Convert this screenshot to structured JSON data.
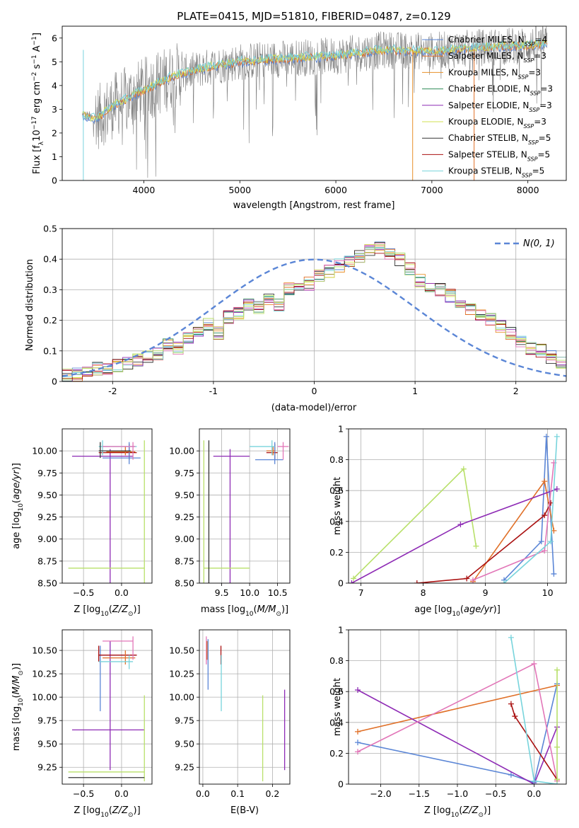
{
  "figure_title": "PLATE=0415, MJD=51810, FIBERID=0487, z=0.129",
  "colors": {
    "Chabrier MILES": "#5b86d6",
    "Salpeter MILES": "#e07028",
    "Kroupa MILES": "#e8902a",
    "Chabrier ELODIE": "#2e8b57",
    "Salpeter ELODIE": "#8e2bb5",
    "Kroupa ELODIE": "#d2e050",
    "Chabrier STELIB": "#333333",
    "Salpeter STELIB": "#aa1111",
    "Kroupa STELIB": "#78d4dc",
    "data": "#808080",
    "pink": "#e276b8",
    "green_yellow": "#b8e06a"
  },
  "chart_data": [
    {
      "id": "spectrum",
      "type": "line",
      "title": "PLATE=0415, MJD=51810, FIBERID=0487, z=0.129",
      "xlabel": "wavelength [Angstrom, rest frame]",
      "ylabel": "Flux [f_λ 10^-17 erg cm^-2 s^-1 A^-1]",
      "xlim": [
        3150,
        8400
      ],
      "ylim": [
        0,
        6.5
      ],
      "xticks": [
        4000,
        5000,
        6000,
        7000,
        8000
      ],
      "yticks": [
        0,
        1,
        2,
        3,
        4,
        5,
        6
      ],
      "grid": false,
      "legend_loc": "right",
      "legend": [
        {
          "label": "Chabrier MILES, N",
          "sub": "SSP",
          "tail": "=4"
        },
        {
          "label": "Salpeter MILES, N",
          "sub": "SSP",
          "tail": "=3"
        },
        {
          "label": "Kroupa MILES, N",
          "sub": "SSP",
          "tail": "=3"
        },
        {
          "label": "Chabrier ELODIE, N",
          "sub": "SSP",
          "tail": "=3"
        },
        {
          "label": "Salpeter ELODIE, N",
          "sub": "SSP",
          "tail": "=3"
        },
        {
          "label": "Kroupa ELODIE, N",
          "sub": "SSP",
          "tail": "=3"
        },
        {
          "label": "Chabrier STELIB, N",
          "sub": "SSP",
          "tail": "=5"
        },
        {
          "label": "Salpeter STELIB, N",
          "sub": "SSP",
          "tail": "=5"
        },
        {
          "label": "Kroupa STELIB, N",
          "sub": "SSP",
          "tail": "=5"
        }
      ],
      "data_trend": {
        "x": [
          3360,
          3500,
          3700,
          4000,
          4300,
          4700,
          5000,
          5500,
          6000,
          6500,
          7000,
          7500,
          8000,
          8200
        ],
        "y": [
          2.75,
          2.6,
          3.2,
          3.8,
          4.4,
          4.8,
          5.0,
          5.15,
          5.25,
          5.5,
          5.45,
          5.6,
          5.7,
          5.75
        ]
      }
    },
    {
      "id": "residuals",
      "type": "step",
      "xlabel": "(data-model)/error",
      "ylabel": "Normed distribution",
      "xlim": [
        -2.5,
        2.5
      ],
      "ylim": [
        0,
        0.5
      ],
      "xticks": [
        -2,
        -1,
        0,
        1,
        2
      ],
      "yticks": [
        0.0,
        0.1,
        0.2,
        0.3,
        0.4,
        0.5
      ],
      "grid": true,
      "reference_label": "N(0, 1)",
      "bin_width": 0.1,
      "bin_start": -2.5,
      "base_values": [
        0.02,
        0.022,
        0.03,
        0.04,
        0.045,
        0.05,
        0.06,
        0.07,
        0.08,
        0.09,
        0.12,
        0.11,
        0.14,
        0.17,
        0.19,
        0.16,
        0.21,
        0.22,
        0.25,
        0.24,
        0.27,
        0.25,
        0.3,
        0.31,
        0.32,
        0.35,
        0.36,
        0.38,
        0.39,
        0.41,
        0.43,
        0.44,
        0.42,
        0.4,
        0.37,
        0.33,
        0.3,
        0.3,
        0.28,
        0.25,
        0.24,
        0.22,
        0.2,
        0.18,
        0.16,
        0.13,
        0.11,
        0.1,
        0.08,
        0.06
      ]
    },
    {
      "id": "age_vs_Z",
      "type": "errorbar",
      "xlabel": "Z [log10(Z/Z⊙)]",
      "ylabel": "age [log10(age/yr)]",
      "xlim": [
        -0.78,
        0.4
      ],
      "ylim": [
        8.5,
        10.25
      ],
      "xticks": [
        -0.5,
        0.0
      ],
      "xticklabels": [
        "−0.5",
        "0.0"
      ],
      "yticks": [
        8.5,
        8.75,
        9.0,
        9.25,
        9.5,
        9.75,
        10.0
      ],
      "yticklabels": [
        "8.50",
        "8.75",
        "9.00",
        "9.25",
        "9.50",
        "9.75",
        "10.00"
      ],
      "grid": true
    },
    {
      "id": "age_vs_mass",
      "type": "errorbar",
      "xlabel": "mass [log10(M/M⊙)]",
      "ylabel": "",
      "xlim": [
        9.1,
        10.72
      ],
      "ylim": [
        8.5,
        10.25
      ],
      "xticks": [
        9.5,
        10.0,
        10.5
      ],
      "xticklabels": [
        "9.5",
        "10.0",
        "10.5"
      ],
      "yticks": [
        8.5,
        8.75,
        9.0,
        9.25,
        9.5,
        9.75,
        10.0
      ],
      "yticklabels": [
        "8.50",
        "8.75",
        "9.00",
        "9.25",
        "9.50",
        "9.75",
        "10.00"
      ],
      "grid": true
    },
    {
      "id": "weight_vs_age",
      "type": "line",
      "xlabel": "age [log10(age/yr)]",
      "ylabel": "mass weight",
      "xlim": [
        6.8,
        10.3
      ],
      "ylim": [
        0,
        1
      ],
      "xticks": [
        7,
        8,
        9,
        10
      ],
      "yticks": [
        0.0,
        0.2,
        0.4,
        0.6,
        0.8,
        1.0
      ],
      "grid": true,
      "series": [
        {
          "color": "#5b86d6",
          "x": [
            9.3,
            9.9,
            9.98,
            10.1
          ],
          "y": [
            0.02,
            0.27,
            0.95,
            0.06
          ]
        },
        {
          "color": "#e07028",
          "x": [
            8.8,
            9.95,
            10.1
          ],
          "y": [
            0.01,
            0.66,
            0.34
          ]
        },
        {
          "color": "#b8e06a",
          "x": [
            6.88,
            8.65,
            8.85
          ],
          "y": [
            0.03,
            0.74,
            0.24
          ]
        },
        {
          "color": "#8e2bb5",
          "x": [
            6.85,
            8.6,
            10.15
          ],
          "y": [
            0.0,
            0.38,
            0.61
          ]
        },
        {
          "color": "#aa1111",
          "x": [
            7.9,
            8.7,
            9.95,
            10.05
          ],
          "y": [
            0.0,
            0.03,
            0.44,
            0.52
          ]
        },
        {
          "color": "#e276b8",
          "x": [
            8.8,
            9.95,
            10.1
          ],
          "y": [
            0.02,
            0.21,
            0.78
          ]
        },
        {
          "color": "#78d4dc",
          "x": [
            9.3,
            10.05,
            10.15
          ],
          "y": [
            0.0,
            0.27,
            0.95
          ]
        }
      ]
    },
    {
      "id": "mass_vs_Z",
      "type": "errorbar",
      "xlabel": "Z [log10(Z/Z⊙)]",
      "ylabel": "mass [log10(M/M⊙)]",
      "xlim": [
        -0.78,
        0.4
      ],
      "ylim": [
        9.07,
        10.72
      ],
      "xticks": [
        -0.5,
        0.0
      ],
      "xticklabels": [
        "−0.5",
        "0.0"
      ],
      "yticks": [
        9.25,
        9.5,
        9.75,
        10.0,
        10.25,
        10.5
      ],
      "yticklabels": [
        "9.25",
        "9.50",
        "9.75",
        "10.00",
        "10.25",
        "10.50"
      ],
      "grid": true
    },
    {
      "id": "mass_vs_EBV",
      "type": "errorbar",
      "xlabel": "E(B-V)",
      "ylabel": "",
      "xlim": [
        -0.01,
        0.25
      ],
      "ylim": [
        9.07,
        10.72
      ],
      "xticks": [
        0.0,
        0.1,
        0.2
      ],
      "xticklabels": [
        "0.0",
        "0.1",
        "0.2"
      ],
      "yticks": [
        9.25,
        9.5,
        9.75,
        10.0,
        10.25,
        10.5
      ],
      "yticklabels": [
        "9.25",
        "9.50",
        "9.75",
        "10.00",
        "10.25",
        "10.50"
      ],
      "grid": true
    },
    {
      "id": "weight_vs_Z",
      "type": "line",
      "xlabel": "Z [log10(Z/Z⊙)]",
      "ylabel": "mass weight",
      "xlim": [
        -2.42,
        0.42
      ],
      "ylim": [
        0,
        1
      ],
      "xticks": [
        -2.0,
        -1.5,
        -1.0,
        -0.5,
        0.0
      ],
      "xticklabels": [
        "−2.0",
        "−1.5",
        "−1.0",
        "−0.5",
        "0.0"
      ],
      "yticks": [
        0.0,
        0.2,
        0.4,
        0.6,
        0.8,
        1.0
      ],
      "grid": true,
      "series": [
        {
          "color": "#5b86d6",
          "x": [
            -2.3,
            -0.3,
            0.0,
            0.3
          ],
          "y": [
            0.27,
            0.06,
            0.01,
            0.65
          ]
        },
        {
          "color": "#e07028",
          "x": [
            -2.3,
            0.3
          ],
          "y": [
            0.34,
            0.64
          ]
        },
        {
          "color": "#8e2bb5",
          "x": [
            -2.3,
            0.0,
            0.3
          ],
          "y": [
            0.61,
            0.0,
            0.37
          ]
        },
        {
          "color": "#e276b8",
          "x": [
            -2.3,
            0.0,
            0.3
          ],
          "y": [
            0.21,
            0.78,
            0.02
          ]
        },
        {
          "color": "#aa1111",
          "x": [
            -0.3,
            -0.25,
            0.3
          ],
          "y": [
            0.52,
            0.44,
            0.03
          ]
        },
        {
          "color": "#78d4dc",
          "x": [
            -0.3,
            0.0,
            0.3
          ],
          "y": [
            0.95,
            0.02,
            0.0
          ]
        },
        {
          "color": "#b8e06a",
          "x": [
            0.3,
            0.3,
            0.3
          ],
          "y": [
            0.03,
            0.74,
            0.24
          ]
        }
      ]
    }
  ]
}
